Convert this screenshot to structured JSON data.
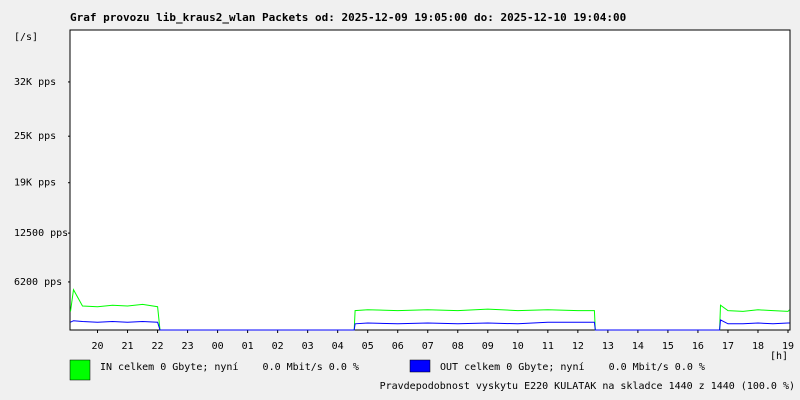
{
  "chart_data": {
    "type": "line",
    "title": "Graf provozu lib_kraus2_wlan Packets od: 2025-12-09 19:05:00 do: 2025-12-10 19:04:00",
    "y_label": "[/s]",
    "x_label": "[h]",
    "x": [
      19.1,
      19.2,
      19.5,
      20,
      20.5,
      21,
      21.5,
      22,
      22.08,
      22.1,
      28.55,
      28.58,
      29,
      30,
      31,
      32,
      33,
      34,
      35,
      36,
      36.55,
      36.58,
      40.72,
      40.75,
      41,
      41.5,
      42,
      42.5,
      43,
      43.05
    ],
    "series": [
      {
        "name": "IN celkem 0 Gbyte; nyní    0.0 Mbit/s 0.0 %",
        "color": "#00ff00",
        "values": [
          2400,
          5200,
          3100,
          3000,
          3200,
          3100,
          3300,
          3000,
          0,
          0,
          0,
          2500,
          2600,
          2500,
          2600,
          2500,
          2700,
          2500,
          2600,
          2500,
          2500,
          0,
          0,
          3200,
          2500,
          2400,
          2600,
          2500,
          2400,
          2600
        ]
      },
      {
        "name": "OUT celkem 0 Gbyte; nyní    0.0 Mbit/s 0.0 %",
        "color": "#0000ff",
        "values": [
          1000,
          1200,
          1100,
          1000,
          1100,
          1000,
          1100,
          1000,
          0,
          0,
          0,
          800,
          900,
          800,
          900,
          800,
          900,
          800,
          1000,
          1000,
          1000,
          0,
          0,
          1300,
          800,
          800,
          900,
          800,
          900,
          900
        ]
      }
    ],
    "xlim": [
      19.0833,
      43.0667
    ],
    "xticks": [
      20,
      21,
      22,
      23,
      {
        "value": 24,
        "label": "00"
      },
      {
        "value": 25,
        "label": "01"
      },
      {
        "value": 26,
        "label": "02"
      },
      {
        "value": 27,
        "label": "03"
      },
      {
        "value": 28,
        "label": "04"
      },
      {
        "value": 29,
        "label": "05"
      },
      {
        "value": 30,
        "label": "06"
      },
      {
        "value": 31,
        "label": "07"
      },
      {
        "value": 32,
        "label": "08"
      },
      {
        "value": 33,
        "label": "09"
      },
      {
        "value": 34,
        "label": "10"
      },
      {
        "value": 35,
        "label": "11"
      },
      {
        "value": 36,
        "label": "12"
      },
      {
        "value": 37,
        "label": "13"
      },
      {
        "value": 38,
        "label": "14"
      },
      {
        "value": 39,
        "label": "15"
      },
      {
        "value": 40,
        "label": "16"
      },
      {
        "value": 41,
        "label": "17"
      },
      {
        "value": 42,
        "label": "18"
      },
      {
        "value": 43,
        "label": "19"
      }
    ],
    "ylim": [
      0,
      38700
    ],
    "yticks": [
      {
        "value": 6200,
        "label": "6200 pps"
      },
      {
        "value": 12500,
        "label": "12500 pps"
      },
      {
        "value": 19000,
        "label": "19K pps"
      },
      {
        "value": 25000,
        "label": "25K pps"
      },
      {
        "value": 32000,
        "label": "32K pps"
      }
    ],
    "grid": false,
    "annotation": "Pravdepodobnost vyskytu E220 KULATAK na skladce 1440 z 1440 (100.0 %)",
    "annotation_color": "#ff0000"
  }
}
